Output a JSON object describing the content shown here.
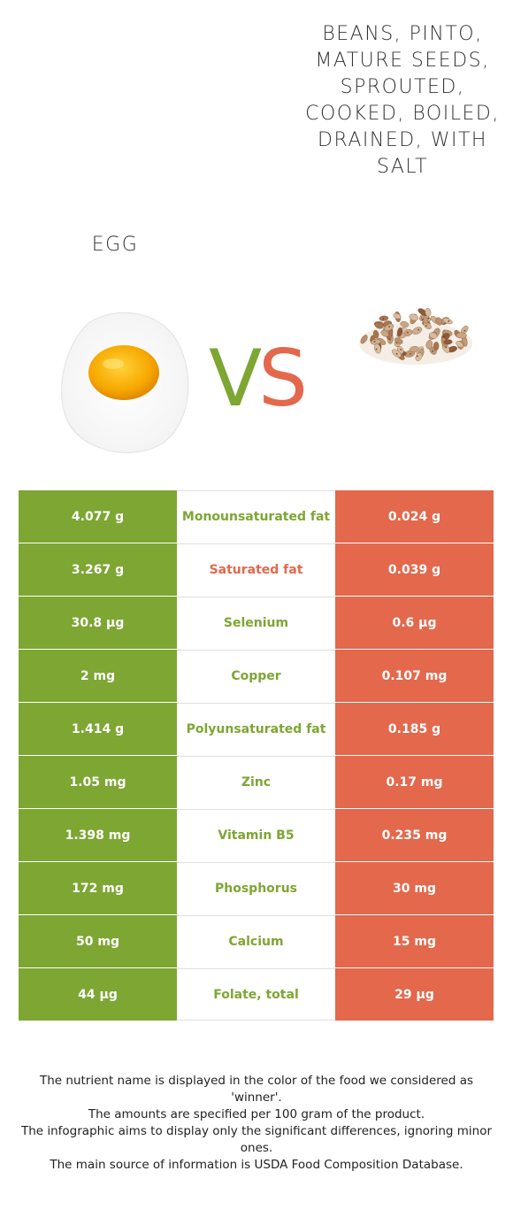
{
  "foods": {
    "left": {
      "name": "Egg",
      "color": "#7da633",
      "image": "fried-egg-image"
    },
    "right": {
      "name": "Beans, pinto, mature seeds, sprouted, cooked, boiled, drained, with salt",
      "color": "#e3684c",
      "image": "pinto-beans-image"
    }
  },
  "vs": {
    "v": "V",
    "s": "S"
  },
  "rows": [
    {
      "nutrient": "Monounsaturated fat",
      "left": "4.077 g",
      "right": "0.024 g",
      "winner": "left"
    },
    {
      "nutrient": "Saturated fat",
      "left": "3.267 g",
      "right": "0.039 g",
      "winner": "right"
    },
    {
      "nutrient": "Selenium",
      "left": "30.8 µg",
      "right": "0.6 µg",
      "winner": "left"
    },
    {
      "nutrient": "Copper",
      "left": "2 mg",
      "right": "0.107 mg",
      "winner": "left"
    },
    {
      "nutrient": "Polyunsaturated fat",
      "left": "1.414 g",
      "right": "0.185 g",
      "winner": "left"
    },
    {
      "nutrient": "Zinc",
      "left": "1.05 mg",
      "right": "0.17 mg",
      "winner": "left"
    },
    {
      "nutrient": "Vitamin B5",
      "left": "1.398 mg",
      "right": "0.235 mg",
      "winner": "left"
    },
    {
      "nutrient": "Phosphorus",
      "left": "172 mg",
      "right": "30 mg",
      "winner": "left"
    },
    {
      "nutrient": "Calcium",
      "left": "50 mg",
      "right": "15 mg",
      "winner": "left"
    },
    {
      "nutrient": "Folate, total",
      "left": "44 µg",
      "right": "29 µg",
      "winner": "left"
    }
  ],
  "footer": {
    "line1": "The nutrient name is displayed in the color of the food we considered as 'winner'.",
    "line2": "The amounts are specified per 100 gram of the product.",
    "line3": "The infographic aims to display only the significant differences, ignoring minor ones.",
    "line4": "The main source of information is USDA Food Composition Database."
  }
}
